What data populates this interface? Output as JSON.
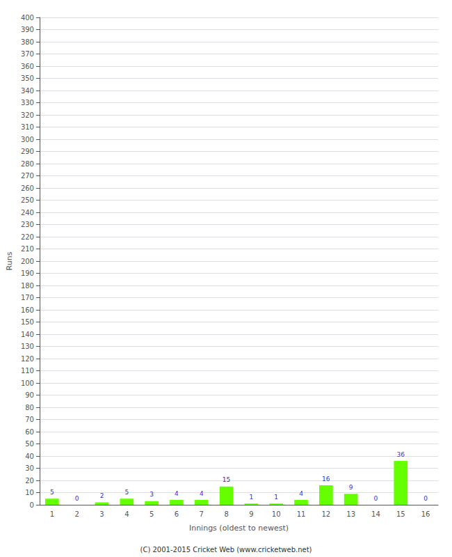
{
  "chart_data": {
    "type": "bar",
    "categories": [
      "1",
      "2",
      "3",
      "4",
      "5",
      "6",
      "7",
      "8",
      "9",
      "10",
      "11",
      "12",
      "13",
      "14",
      "15",
      "16"
    ],
    "values": [
      5,
      0,
      2,
      5,
      3,
      4,
      4,
      15,
      1,
      1,
      4,
      16,
      9,
      0,
      36,
      0
    ],
    "color": "#66ff00",
    "xlabel": "Innings (oldest to newest)",
    "ylabel": "Runs",
    "ylim": [
      0,
      400
    ],
    "yticks": [
      0,
      10,
      20,
      30,
      40,
      50,
      60,
      70,
      80,
      90,
      100,
      110,
      120,
      130,
      140,
      150,
      160,
      170,
      180,
      190,
      200,
      210,
      220,
      230,
      240,
      250,
      260,
      270,
      280,
      290,
      300,
      310,
      320,
      330,
      340,
      350,
      360,
      370,
      380,
      390,
      400
    ],
    "grid": true,
    "data_labels": true,
    "annotations": [
      "(C) 2001-2015 Cricket Web (www.cricketweb.net)"
    ]
  }
}
